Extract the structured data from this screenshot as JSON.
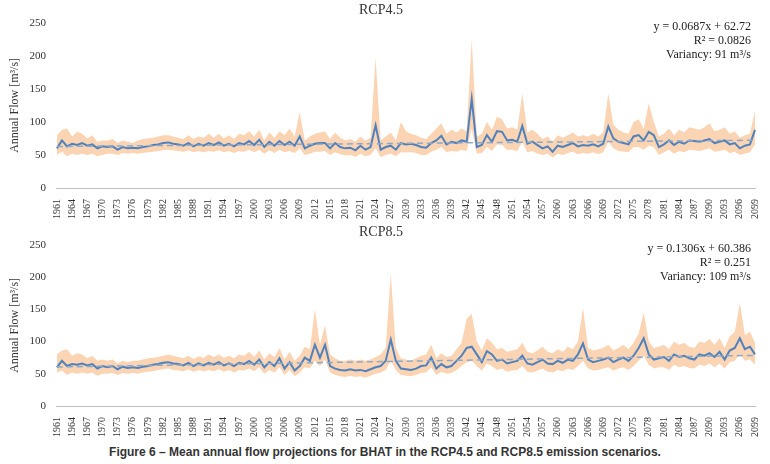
{
  "caption": "Figure 6 – Mean annual flow projections for BHAT in the RCP4.5 and RCP8.5 emission scenarios.",
  "chart_data": [
    {
      "type": "line",
      "title": "RCP4.5",
      "y_label": "Annual Flow [m³/s]",
      "categories": [
        "1961",
        null,
        null,
        "1964",
        null,
        null,
        "1967",
        null,
        null,
        "1970",
        null,
        null,
        "1973",
        null,
        null,
        "1976",
        null,
        null,
        "1979",
        null,
        null,
        "1982",
        null,
        null,
        "1985",
        null,
        null,
        "1988",
        null,
        null,
        "1991",
        null,
        null,
        "1994",
        null,
        null,
        "1997",
        null,
        null,
        "2000",
        null,
        null,
        "2003",
        null,
        null,
        "2006",
        null,
        null,
        "2009",
        null,
        null,
        "2012",
        null,
        null,
        "2015",
        null,
        null,
        "2018",
        null,
        null,
        "2021",
        null,
        null,
        "2024",
        null,
        null,
        "2027",
        null,
        null,
        "2030",
        null,
        null,
        "2033",
        null,
        null,
        "2036",
        null,
        null,
        "2039",
        null,
        null,
        "2042",
        null,
        null,
        "2045",
        null,
        null,
        "2048",
        null,
        null,
        "2051",
        null,
        null,
        "2054",
        null,
        null,
        "2057",
        null,
        null,
        "2060",
        null,
        null,
        "2063",
        null,
        null,
        "2066",
        null,
        null,
        "2069",
        null,
        null,
        "2072",
        null,
        null,
        "2075",
        null,
        null,
        "2078",
        null,
        null,
        "2081",
        null,
        null,
        "2084",
        null,
        null,
        "2087",
        null,
        null,
        "2090",
        null,
        null,
        "2093",
        null,
        null,
        "2096",
        null,
        null,
        "2099"
      ],
      "series": [
        {
          "color": "#4f81bd",
          "line_style": "solid",
          "values": [
            60,
            72,
            63,
            67,
            65,
            68,
            64,
            66,
            60,
            63,
            62,
            63,
            58,
            62,
            60,
            61,
            60,
            62,
            63,
            65,
            66,
            68,
            69,
            67,
            66,
            64,
            68,
            63,
            67,
            64,
            68,
            65,
            69,
            64,
            67,
            63,
            68,
            66,
            71,
            65,
            73,
            62,
            70,
            64,
            71,
            65,
            70,
            64,
            78,
            60,
            64,
            67,
            68,
            68,
            60,
            68,
            62,
            60,
            61,
            57,
            64,
            58,
            62,
            95,
            58,
            62,
            64,
            58,
            68,
            66,
            67,
            65,
            62,
            61,
            68,
            72,
            79,
            66,
            70,
            68,
            72,
            70,
            135,
            62,
            65,
            80,
            70,
            86,
            85,
            72,
            73,
            70,
            94,
            67,
            70,
            65,
            60,
            63,
            55,
            64,
            62,
            65,
            68,
            63,
            65,
            64,
            66,
            63,
            67,
            93,
            75,
            70,
            68,
            66,
            78,
            80,
            72,
            85,
            80,
            62,
            66,
            72,
            65,
            70,
            67,
            72,
            71,
            70,
            72,
            74,
            68,
            70,
            72,
            66,
            68,
            60,
            64,
            66,
            88
          ]
        }
      ],
      "band": {
        "color": "#fbd4b4",
        "lower": [
          50,
          55,
          48,
          52,
          50,
          52,
          50,
          52,
          48,
          50,
          52,
          52,
          50,
          53,
          52,
          53,
          52,
          53,
          54,
          55,
          56,
          57,
          58,
          57,
          56,
          55,
          57,
          54,
          56,
          54,
          56,
          55,
          57,
          54,
          56,
          53,
          56,
          55,
          58,
          54,
          58,
          52,
          57,
          53,
          58,
          54,
          56,
          53,
          60,
          50,
          52,
          55,
          55,
          56,
          50,
          54,
          51,
          49,
          50,
          47,
          52,
          48,
          50,
          60,
          47,
          50,
          52,
          48,
          54,
          54,
          54,
          53,
          50,
          50,
          55,
          58,
          62,
          54,
          56,
          55,
          58,
          56,
          90,
          52,
          53,
          62,
          56,
          66,
          65,
          58,
          58,
          56,
          70,
          54,
          56,
          52,
          50,
          52,
          46,
          52,
          50,
          53,
          55,
          51,
          53,
          52,
          54,
          51,
          54,
          70,
          60,
          56,
          55,
          54,
          62,
          62,
          58,
          64,
          62,
          50,
          54,
          58,
          52,
          56,
          54,
          58,
          57,
          56,
          58,
          60,
          55,
          56,
          58,
          53,
          55,
          50,
          52,
          54,
          66
        ],
        "upper": [
          80,
          88,
          90,
          78,
          85,
          82,
          75,
          80,
          70,
          72,
          72,
          74,
          68,
          72,
          70,
          68,
          72,
          74,
          75,
          76,
          78,
          80,
          80,
          78,
          76,
          74,
          80,
          74,
          78,
          76,
          82,
          76,
          82,
          75,
          80,
          74,
          82,
          80,
          86,
          78,
          88,
          72,
          84,
          76,
          86,
          80,
          90,
          78,
          115,
          72,
          78,
          82,
          84,
          86,
          74,
          84,
          76,
          72,
          74,
          70,
          78,
          72,
          76,
          197,
          72,
          78,
          84,
          72,
          100,
          86,
          82,
          80,
          76,
          74,
          82,
          90,
          98,
          82,
          88,
          84,
          90,
          86,
          225,
          78,
          82,
          100,
          88,
          108,
          104,
          90,
          92,
          88,
          143,
          84,
          88,
          82,
          74,
          78,
          70,
          80,
          76,
          80,
          84,
          78,
          80,
          78,
          82,
          78,
          84,
          143,
          96,
          88,
          84,
          82,
          100,
          104,
          90,
          128,
          100,
          78,
          82,
          90,
          80,
          88,
          84,
          92,
          90,
          88,
          92,
          98,
          86,
          88,
          92,
          82,
          86,
          76,
          80,
          82,
          117
        ]
      },
      "trend": {
        "color": "#8ea9c8",
        "line_style": "dashed",
        "x": [
          "1961",
          "2099"
        ],
        "values": [
          62.79,
          72.27
        ]
      },
      "annotations": [
        "y = 0.0687x + 62.72",
        "R² = 0.0826",
        "Variancy: 91 m³/s"
      ],
      "ylim": [
        0,
        250
      ],
      "yticks": [
        0,
        50,
        100,
        150,
        200,
        250
      ],
      "grid": false
    },
    {
      "type": "line",
      "title": "RCP8.5",
      "y_label": "Annual Flow [m³/s]",
      "categories": [
        "1961",
        null,
        null,
        "1964",
        null,
        null,
        "1967",
        null,
        null,
        "1970",
        null,
        null,
        "1973",
        null,
        null,
        "1976",
        null,
        null,
        "1979",
        null,
        null,
        "1982",
        null,
        null,
        "1985",
        null,
        null,
        "1988",
        null,
        null,
        "1991",
        null,
        null,
        "1994",
        null,
        null,
        "1997",
        null,
        null,
        "2000",
        null,
        null,
        "2003",
        null,
        null,
        "2006",
        null,
        null,
        "2009",
        null,
        null,
        "2012",
        null,
        null,
        "2015",
        null,
        null,
        "2018",
        null,
        null,
        "2021",
        null,
        null,
        "2024",
        null,
        null,
        "2027",
        null,
        null,
        "2030",
        null,
        null,
        "2033",
        null,
        null,
        "2036",
        null,
        null,
        "2039",
        null,
        null,
        "2042",
        null,
        null,
        "2045",
        null,
        null,
        "2048",
        null,
        null,
        "2051",
        null,
        null,
        "2054",
        null,
        null,
        "2057",
        null,
        null,
        "2060",
        null,
        null,
        "2063",
        null,
        null,
        "2066",
        null,
        null,
        "2069",
        null,
        null,
        "2072",
        null,
        null,
        "2075",
        null,
        null,
        "2078",
        null,
        null,
        "2081",
        null,
        null,
        "2084",
        null,
        null,
        "2087",
        null,
        null,
        "2090",
        null,
        null,
        "2093",
        null,
        null,
        "2096",
        null,
        null,
        "2099"
      ],
      "series": [
        {
          "color": "#4f81bd",
          "line_style": "solid",
          "values": [
            60,
            70,
            62,
            65,
            64,
            66,
            63,
            65,
            58,
            62,
            60,
            62,
            57,
            61,
            59,
            60,
            59,
            61,
            62,
            64,
            65,
            67,
            68,
            66,
            65,
            63,
            67,
            62,
            66,
            63,
            67,
            64,
            68,
            63,
            66,
            62,
            67,
            65,
            70,
            64,
            72,
            60,
            68,
            62,
            74,
            58,
            68,
            55,
            62,
            75,
            70,
            95,
            75,
            95,
            62,
            58,
            56,
            55,
            57,
            55,
            56,
            54,
            57,
            60,
            62,
            70,
            103,
            70,
            58,
            57,
            56,
            58,
            62,
            63,
            75,
            58,
            65,
            60,
            62,
            70,
            78,
            90,
            92,
            80,
            68,
            85,
            80,
            70,
            72,
            66,
            68,
            70,
            78,
            66,
            64,
            68,
            72,
            66,
            65,
            70,
            67,
            72,
            70,
            80,
            97,
            72,
            68,
            70,
            72,
            75,
            68,
            72,
            75,
            70,
            78,
            90,
            105,
            80,
            72,
            74,
            76,
            70,
            80,
            76,
            78,
            74,
            72,
            80,
            78,
            82,
            76,
            84,
            72,
            86,
            90,
            105,
            88,
            92,
            80
          ]
        }
      ],
      "band": {
        "color": "#fbd4b4",
        "lower": [
          52,
          55,
          48,
          52,
          50,
          52,
          50,
          52,
          47,
          50,
          50,
          51,
          48,
          51,
          50,
          51,
          50,
          52,
          53,
          54,
          56,
          57,
          58,
          56,
          55,
          54,
          57,
          53,
          56,
          54,
          56,
          54,
          57,
          53,
          56,
          52,
          56,
          55,
          58,
          54,
          60,
          50,
          56,
          52,
          60,
          48,
          56,
          46,
          52,
          60,
          58,
          70,
          62,
          72,
          52,
          48,
          46,
          45,
          47,
          45,
          46,
          44,
          47,
          50,
          52,
          56,
          70,
          56,
          48,
          47,
          46,
          48,
          51,
          52,
          60,
          48,
          53,
          50,
          51,
          56,
          62,
          68,
          70,
          62,
          55,
          66,
          62,
          56,
          58,
          53,
          55,
          56,
          62,
          53,
          52,
          55,
          58,
          53,
          52,
          56,
          54,
          58,
          56,
          62,
          70,
          58,
          55,
          56,
          58,
          60,
          55,
          58,
          60,
          56,
          62,
          70,
          78,
          64,
          58,
          60,
          60,
          56,
          64,
          60,
          62,
          59,
          58,
          64,
          62,
          66,
          60,
          66,
          58,
          68,
          70,
          80,
          70,
          72,
          64
        ],
        "upper": [
          80,
          86,
          88,
          78,
          82,
          80,
          74,
          78,
          70,
          72,
          70,
          72,
          66,
          70,
          68,
          70,
          70,
          72,
          74,
          75,
          76,
          78,
          80,
          78,
          76,
          74,
          78,
          73,
          77,
          75,
          80,
          76,
          80,
          75,
          78,
          74,
          80,
          78,
          84,
          76,
          86,
          72,
          82,
          76,
          90,
          72,
          84,
          70,
          78,
          92,
          88,
          150,
          95,
          125,
          80,
          74,
          70,
          70,
          72,
          70,
          72,
          70,
          72,
          76,
          80,
          90,
          205,
          90,
          74,
          72,
          70,
          74,
          78,
          80,
          95,
          74,
          82,
          76,
          78,
          88,
          98,
          135,
          143,
          100,
          86,
          105,
          98,
          88,
          90,
          84,
          86,
          88,
          98,
          84,
          82,
          86,
          92,
          84,
          82,
          88,
          84,
          92,
          88,
          100,
          152,
          90,
          86,
          88,
          90,
          95,
          86,
          90,
          95,
          88,
          98,
          112,
          145,
          100,
          90,
          92,
          95,
          88,
          100,
          95,
          98,
          92,
          90,
          100,
          98,
          104,
          95,
          105,
          90,
          108,
          115,
          160,
          110,
          115,
          98
        ]
      },
      "trend": {
        "color": "#8ea9c8",
        "line_style": "dashed",
        "x": [
          "1961",
          "2099"
        ],
        "values": [
          60.52,
          78.54
        ]
      },
      "annotations": [
        "y = 0.1306x + 60.386",
        "R² = 0.251",
        "Variancy: 109 m³/s"
      ],
      "ylim": [
        0,
        250
      ],
      "yticks": [
        0,
        50,
        100,
        150,
        200,
        250
      ],
      "grid": false
    }
  ]
}
